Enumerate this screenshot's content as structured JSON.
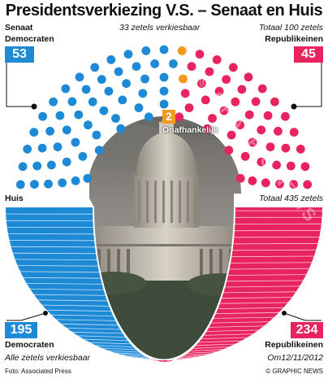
{
  "title": "Presidentsverkiezing V.S. – Senaat en Huis",
  "chart_data": [
    {
      "type": "parliament",
      "chamber": "Senaat",
      "note_top": "33 zetels verkiesbaar",
      "total_label": "Totaal 100 zetels",
      "total": 100,
      "series": [
        {
          "name": "Democraten",
          "value": 53
        },
        {
          "name": "Onafhankelijk",
          "value": 2
        },
        {
          "name": "Republikeinen",
          "value": 45
        }
      ]
    },
    {
      "type": "parliament",
      "chamber": "Huis",
      "total_label": "Totaal 435 zetels",
      "note_bottom": "Alle zetels verkiesbaar",
      "total": 435,
      "series": [
        {
          "name": "Democraten",
          "value": 195
        },
        {
          "name": "Republikeinen",
          "value": 234
        }
      ]
    }
  ],
  "colors": {
    "democrats": "#1e8ad6",
    "republicans": "#e8245e",
    "independent": "#f39a1e",
    "vacant": "#e6e6e6"
  },
  "footer": {
    "source": "Foto: Associated Press",
    "date": "Om12/11/2012",
    "credit": "© GRAPHIC NEWS",
    "watermark": "© GRAPHIC NEWS"
  }
}
